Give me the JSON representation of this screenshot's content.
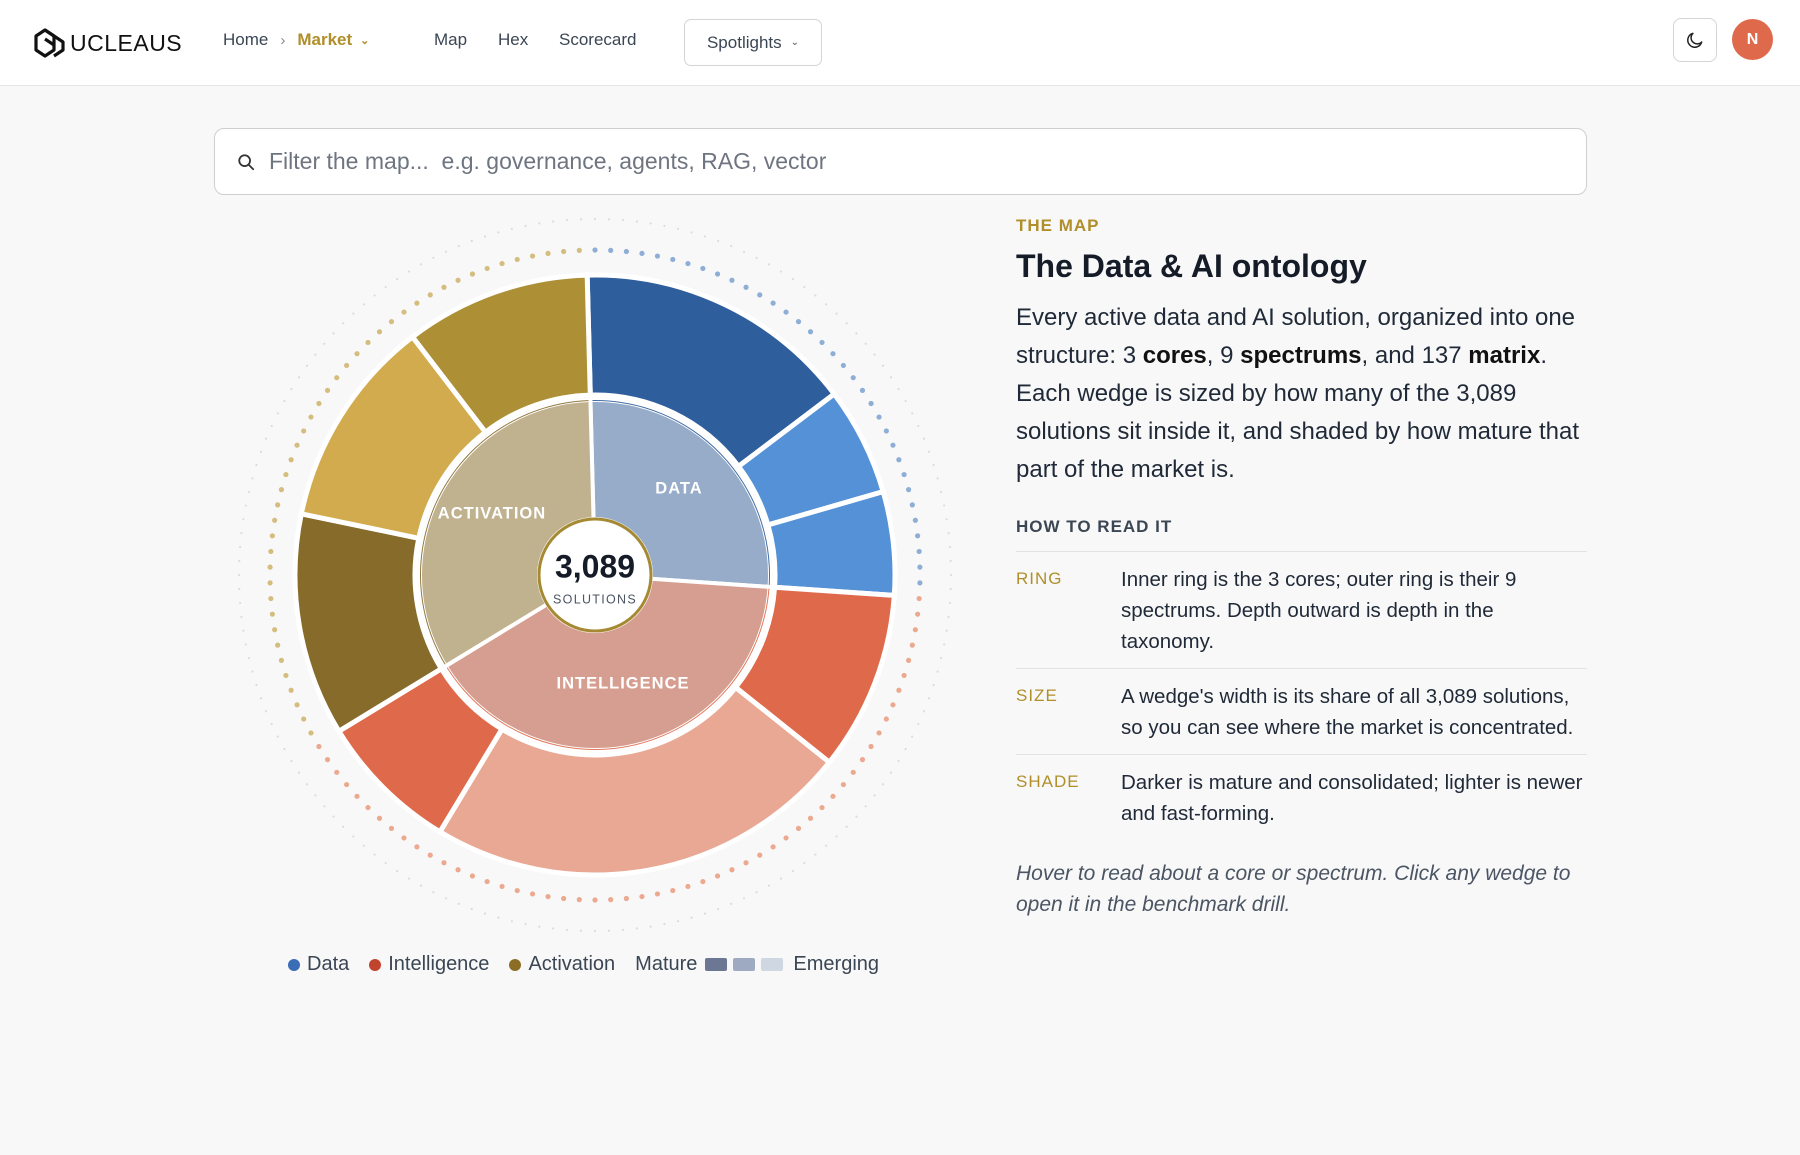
{
  "header": {
    "logo_text": "UCLEAUS",
    "breadcrumb": {
      "home": "Home",
      "separator": "›",
      "current": "Market"
    },
    "nav": [
      "Map",
      "Hex",
      "Scorecard"
    ],
    "spotlights_label": "Spotlights",
    "theme_icon": "moon-icon",
    "avatar_initial": "N"
  },
  "search": {
    "placeholder": "Filter the map...  e.g. governance, agents, RAG, vector",
    "value": ""
  },
  "chart_data": {
    "type": "sunburst",
    "center_value": "3,089",
    "center_label": "SOLUTIONS",
    "total_solutions": 3089,
    "cores": [
      {
        "name": "DATA",
        "share": 0.265,
        "color": "#2f5e9c",
        "inner_color": "#96acc9",
        "spectrums": [
          {
            "share": 0.57,
            "maturity": "mature",
            "color": "#2f5e9c"
          },
          {
            "share": 0.22,
            "maturity": "emerging",
            "color": "#5591d6"
          },
          {
            "share": 0.21,
            "maturity": "emerging",
            "color": "#5591d6"
          }
        ]
      },
      {
        "name": "INTELLIGENCE",
        "share": 0.402,
        "color": "#df6a4b",
        "inner_color": "#d69e90",
        "spectrums": [
          {
            "share": 0.24,
            "maturity": "mature",
            "color": "#df6a4b"
          },
          {
            "share": 0.57,
            "maturity": "emerging",
            "color": "#e9a893"
          },
          {
            "share": 0.19,
            "maturity": "mature",
            "color": "#df6a4b"
          }
        ]
      },
      {
        "name": "ACTIVATION",
        "share": 0.333,
        "color": "#866b2a",
        "inner_color": "#c0b28f",
        "spectrums": [
          {
            "share": 0.36,
            "maturity": "mature",
            "color": "#866b2a"
          },
          {
            "share": 0.34,
            "maturity": "emerging",
            "color": "#d1ab4d"
          },
          {
            "share": 0.3,
            "maturity": "mid",
            "color": "#ad9035"
          }
        ]
      }
    ]
  },
  "legend": {
    "items": [
      {
        "label": "Data",
        "color": "#3a6db5"
      },
      {
        "label": "Intelligence",
        "color": "#c1442f"
      },
      {
        "label": "Activation",
        "color": "#8c6d26"
      }
    ],
    "mature_label": "Mature",
    "emerging_label": "Emerging",
    "swatches": [
      "#6c7893",
      "#9daac1",
      "#cfd7e3"
    ]
  },
  "panel": {
    "eyebrow": "THE MAP",
    "title": "The Data & AI ontology",
    "lead": {
      "p1": "Every active data and AI solution, organized into one structure: 3 ",
      "b1": "cores",
      "p2": ", 9 ",
      "b2": "spectrums",
      "p3": ", and 137 ",
      "b3": "matrix",
      "p4": ". Each wedge is sized by how many of the 3,089 solutions sit inside it, and shaded by how mature that part of the market is."
    },
    "howto_label": "HOW TO READ IT",
    "rows": [
      {
        "key": "RING",
        "text": "Inner ring is the 3 cores; outer ring is their 9 spectrums. Depth outward is depth in the taxonomy."
      },
      {
        "key": "SIZE",
        "text": "A wedge's width is its share of all 3,089 solutions, so you can see where the market is concentrated."
      },
      {
        "key": "SHADE",
        "text": "Darker is mature and consolidated; lighter is newer and fast-forming."
      }
    ],
    "hint": "Hover to read about a core or spectrum. Click any wedge to open it in the benchmark drill."
  }
}
